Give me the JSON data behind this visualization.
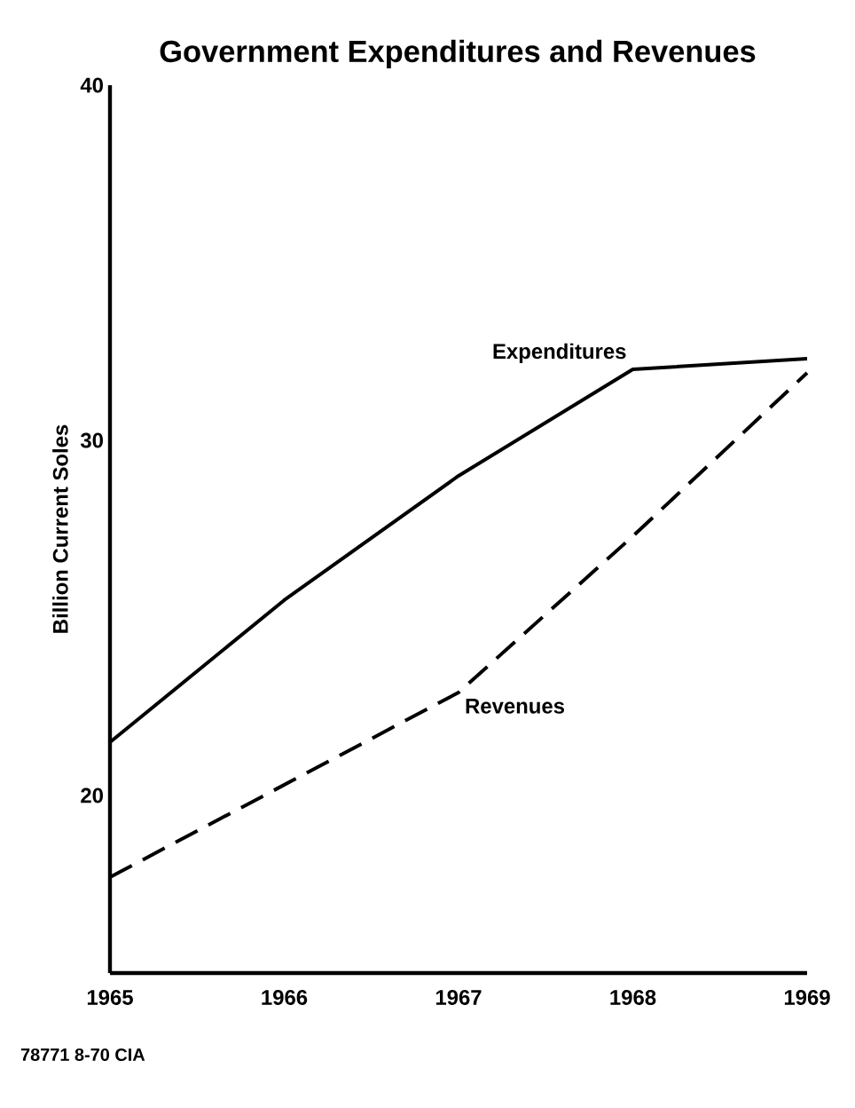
{
  "chart_data": {
    "type": "line",
    "title": "Government Expenditures and Revenues",
    "ylabel": "Billion Current Soles",
    "x": [
      1965,
      1966,
      1967,
      1968,
      1969
    ],
    "series": [
      {
        "name": "Expenditures",
        "color": "#000000",
        "line_style": "solid",
        "values": [
          21.5,
          25.5,
          29,
          32,
          32.3
        ]
      },
      {
        "name": "Revenues",
        "color": "#000000",
        "line_style": "dashed",
        "values": [
          17.7,
          20.3,
          22.9,
          27.3,
          31.9
        ]
      }
    ],
    "xlim": [
      1965,
      1969
    ],
    "xticks": [
      1965,
      1966,
      1967,
      1968,
      1969
    ],
    "ylim": [
      15,
      40
    ],
    "yticks": [
      20,
      30,
      40
    ],
    "grid": false,
    "marker": "none",
    "annotations": [
      "78771 8-70 CIA"
    ]
  }
}
